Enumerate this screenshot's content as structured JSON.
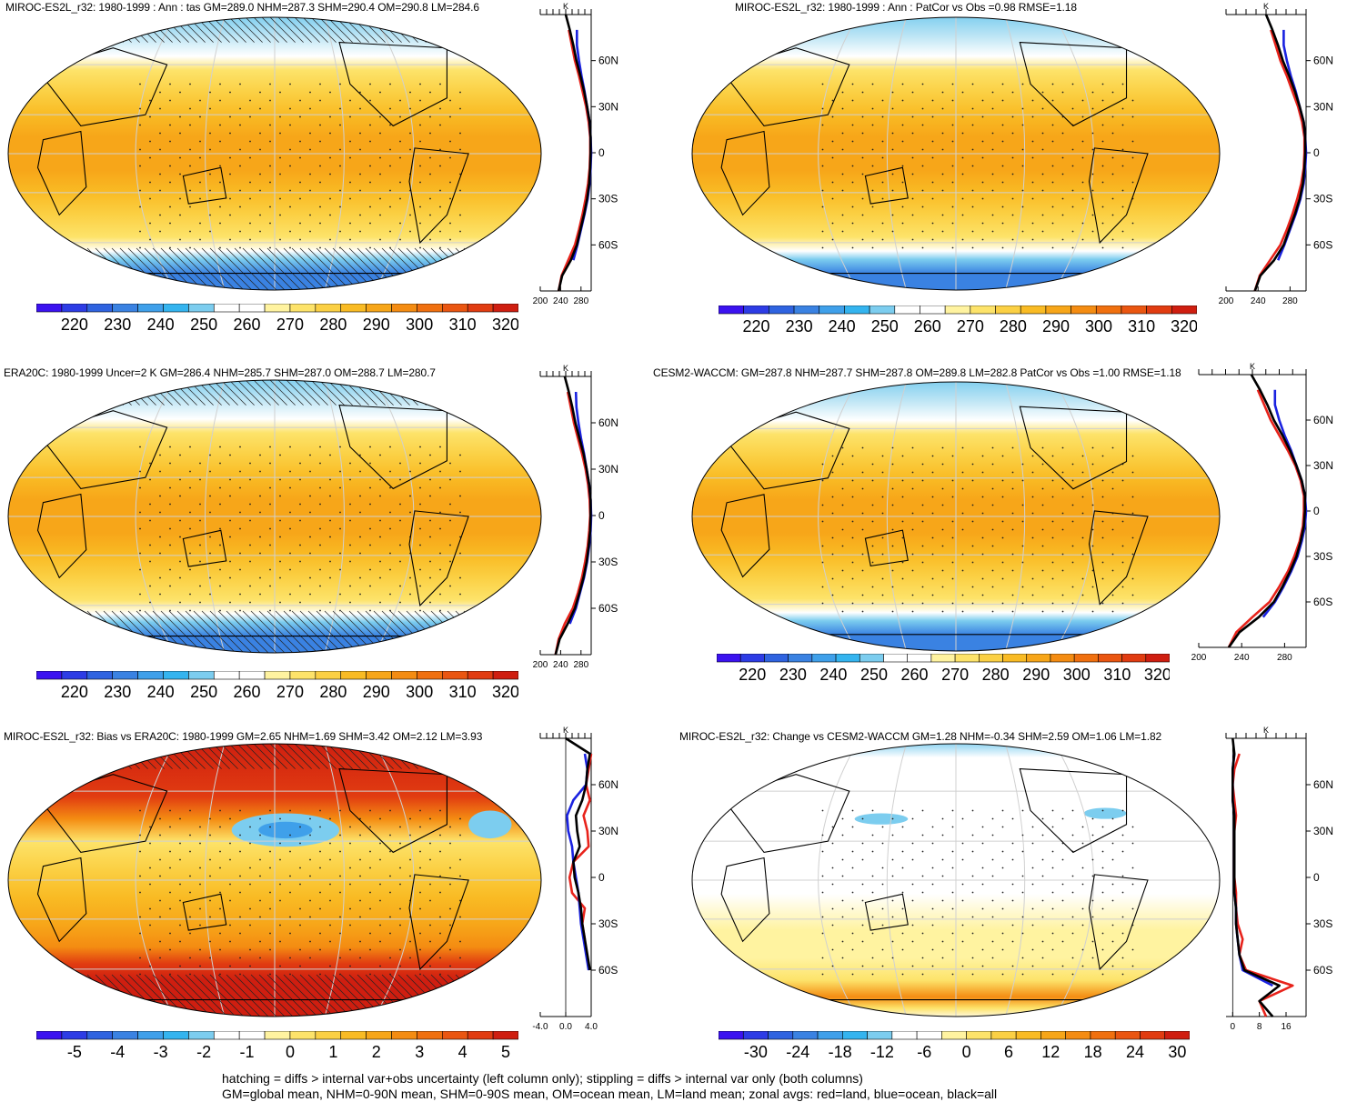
{
  "colors": {
    "land": "#e8231b",
    "ocean": "#1a22e0",
    "all": "#000000",
    "abs_scale": [
      "#3b12f0",
      "#2d3ce5",
      "#2f63e0",
      "#3a82e2",
      "#3fa0ea",
      "#34b4ef",
      "#7ccdef",
      "#ffffff",
      "#ffffff",
      "#fff3a0",
      "#fde36a",
      "#fbd044",
      "#f9bb24",
      "#f7a619",
      "#f48c12",
      "#f0700f",
      "#ea5611",
      "#e13c11",
      "#cf1e10"
    ],
    "diff_scale": [
      "#3b12f0",
      "#2d3ce5",
      "#2f63e0",
      "#3a82e2",
      "#3fa0ea",
      "#34b4ef",
      "#7ccdef",
      "#ffffff",
      "#ffffff",
      "#fff3a0",
      "#fde36a",
      "#fbd044",
      "#f9bb24",
      "#f7a619",
      "#f48c12",
      "#f0700f",
      "#ea5611",
      "#e13c11",
      "#cf1e10"
    ]
  },
  "panels": [
    {
      "id": "miroc",
      "title": "MIROC-ES2L_r32: 1980-1999 : Ann : tas GM=289.0 NHM=287.3 SHM=290.4 OM=290.8 LM=284.6",
      "map_style": "abs",
      "hatch": true,
      "colorbar_labels": [
        "220",
        "230",
        "240",
        "250",
        "260",
        "270",
        "280",
        "290",
        "300",
        "310",
        "320"
      ],
      "zonal": {
        "unit": "K",
        "lat_labels": [
          "60N",
          "30N",
          "0",
          "30S",
          "60S"
        ],
        "x_labels": [
          "200",
          "240",
          "280"
        ],
        "xlim": [
          200,
          300
        ]
      }
    },
    {
      "id": "miroc-patcor",
      "title": "MIROC-ES2L_r32: 1980-1999 : Ann : PatCor vs Obs =0.98 RMSE=1.18",
      "map_style": "abs",
      "hatch": false,
      "colorbar_labels": [
        "220",
        "230",
        "240",
        "250",
        "260",
        "270",
        "280",
        "290",
        "300",
        "310",
        "320"
      ],
      "zonal": {
        "unit": "K",
        "lat_labels": [
          "60N",
          "30N",
          "0",
          "30S",
          "60S"
        ],
        "x_labels": [
          "200",
          "240",
          "280"
        ],
        "xlim": [
          200,
          300
        ]
      }
    },
    {
      "id": "era20c",
      "title": "ERA20C: 1980-1999 Uncer=2 K GM=286.4 NHM=285.7 SHM=287.0 OM=288.7 LM=280.7",
      "map_style": "abs",
      "hatch": true,
      "colorbar_labels": [
        "220",
        "230",
        "240",
        "250",
        "260",
        "270",
        "280",
        "290",
        "300",
        "310",
        "320"
      ],
      "zonal": {
        "unit": "K",
        "lat_labels": [
          "60N",
          "30N",
          "0",
          "30S",
          "60S"
        ],
        "x_labels": [
          "200",
          "240",
          "280"
        ],
        "xlim": [
          200,
          300
        ]
      }
    },
    {
      "id": "cesm2",
      "title": "CESM2-WACCM: GM=287.8 NHM=287.7 SHM=287.8 OM=289.8 LM=282.8 PatCor vs Obs =1.00 RMSE=1.18",
      "map_style": "abs",
      "hatch": false,
      "colorbar_labels": [
        "220",
        "230",
        "240",
        "250",
        "260",
        "270",
        "280",
        "290",
        "300",
        "310",
        "320"
      ],
      "zonal": {
        "unit": "K",
        "lat_labels": [
          "60N",
          "30N",
          "0",
          "30S",
          "60S"
        ],
        "x_labels": [
          "200",
          "240",
          "280"
        ],
        "xlim": [
          200,
          300
        ]
      }
    },
    {
      "id": "bias",
      "title": "MIROC-ES2L_r32: Bias vs ERA20C: 1980-1999 GM=2.65 NHM=1.69 SHM=3.42 OM=2.12 LM=3.93",
      "map_style": "bias",
      "hatch": true,
      "colorbar_labels": [
        "-5",
        "-4",
        "-3",
        "-2",
        "-1",
        "0",
        "1",
        "2",
        "3",
        "4",
        "5"
      ],
      "zonal": {
        "unit": "K",
        "lat_labels": [
          "60N",
          "30N",
          "0",
          "30S",
          "60S"
        ],
        "x_labels": [
          "-4.0",
          "0.0",
          "4.0"
        ],
        "xlim": [
          -4,
          4
        ]
      }
    },
    {
      "id": "change",
      "title": "MIROC-ES2L_r32: Change vs CESM2-WACCM GM=1.28 NHM=-0.34 SHM=2.59 OM=1.06 LM=1.82",
      "map_style": "change",
      "hatch": false,
      "colorbar_labels": [
        "-30",
        "-24",
        "-18",
        "-12",
        "-6",
        "0",
        "6",
        "12",
        "18",
        "24",
        "30"
      ],
      "zonal": {
        "unit": "K",
        "lat_labels": [
          "60N",
          "30N",
          "0",
          "30S",
          "60S"
        ],
        "x_labels": [
          "0",
          "8",
          "16"
        ],
        "xlim": [
          -2,
          22
        ]
      }
    }
  ],
  "footer": {
    "line1": "hatching = diffs > internal var+obs uncertainty (left column only); stippling = diffs > internal var only (both columns)",
    "line2": "GM=global mean, NHM=0-90N mean, SHM=0-90S mean, OM=ocean mean, LM=land mean; zonal avgs: red=land, blue=ocean, black=all"
  },
  "chart_data": [
    {
      "type": "line",
      "panel": "miroc",
      "xlabel": "K",
      "xlim": [
        200,
        300
      ],
      "categories": [
        "90N",
        "80N",
        "70N",
        "60N",
        "50N",
        "40N",
        "30N",
        "20N",
        "10N",
        "0",
        "10S",
        "20S",
        "30S",
        "40S",
        "50S",
        "60S",
        "70S",
        "80S",
        "90S"
      ],
      "series": [
        {
          "name": "land",
          "values": [
            null,
            256,
            262,
            268,
            276,
            283,
            290,
            295,
            298,
            298,
            297,
            294,
            289,
            283,
            276,
            268,
            255,
            242,
            236
          ]
        },
        {
          "name": "ocean",
          "values": [
            null,
            272,
            272,
            276,
            281,
            287,
            292,
            297,
            299,
            300,
            299,
            297,
            293,
            287,
            280,
            273,
            265,
            null,
            null
          ]
        },
        {
          "name": "all",
          "values": [
            250,
            258,
            265,
            271,
            279,
            286,
            292,
            297,
            299,
            299,
            298,
            296,
            292,
            286,
            279,
            272,
            260,
            243,
            236
          ]
        }
      ]
    },
    {
      "type": "line",
      "panel": "miroc-patcor",
      "xlabel": "K",
      "xlim": [
        200,
        300
      ],
      "categories": [
        "90N",
        "80N",
        "70N",
        "60N",
        "50N",
        "40N",
        "30N",
        "20N",
        "10N",
        "0",
        "10S",
        "20S",
        "30S",
        "40S",
        "50S",
        "60S",
        "70S",
        "80S",
        "90S"
      ],
      "series": [
        {
          "name": "land",
          "values": [
            null,
            256,
            262,
            268,
            276,
            283,
            290,
            295,
            298,
            298,
            297,
            294,
            289,
            283,
            276,
            268,
            255,
            242,
            236
          ]
        },
        {
          "name": "ocean",
          "values": [
            null,
            272,
            272,
            276,
            281,
            287,
            292,
            297,
            299,
            300,
            299,
            297,
            293,
            287,
            280,
            273,
            265,
            null,
            null
          ]
        },
        {
          "name": "all",
          "values": [
            250,
            258,
            265,
            271,
            279,
            286,
            292,
            297,
            299,
            299,
            298,
            296,
            292,
            286,
            279,
            272,
            260,
            243,
            236
          ]
        }
      ]
    },
    {
      "type": "line",
      "panel": "era20c",
      "xlabel": "K",
      "xlim": [
        200,
        300
      ],
      "categories": [
        "90N",
        "80N",
        "70N",
        "60N",
        "50N",
        "40N",
        "30N",
        "20N",
        "10N",
        "0",
        "10S",
        "20S",
        "30S",
        "40S",
        "50S",
        "60S",
        "70S",
        "80S",
        "90S"
      ],
      "series": [
        {
          "name": "land",
          "values": [
            null,
            254,
            260,
            266,
            274,
            282,
            289,
            294,
            297,
            298,
            296,
            293,
            288,
            282,
            274,
            264,
            248,
            236,
            230
          ]
        },
        {
          "name": "ocean",
          "values": [
            null,
            270,
            271,
            275,
            280,
            286,
            291,
            296,
            299,
            300,
            299,
            296,
            292,
            286,
            278,
            270,
            258,
            null,
            null
          ]
        },
        {
          "name": "all",
          "values": [
            248,
            256,
            263,
            269,
            277,
            285,
            291,
            296,
            299,
            299,
            298,
            295,
            291,
            285,
            277,
            268,
            254,
            238,
            230
          ]
        }
      ]
    },
    {
      "type": "line",
      "panel": "cesm2",
      "xlabel": "K",
      "xlim": [
        200,
        300
      ],
      "categories": [
        "90N",
        "80N",
        "70N",
        "60N",
        "50N",
        "40N",
        "30N",
        "20N",
        "10N",
        "0",
        "10S",
        "20S",
        "30S",
        "40S",
        "50S",
        "60S",
        "70S",
        "80S",
        "90S"
      ],
      "series": [
        {
          "name": "land",
          "values": [
            null,
            255,
            261,
            267,
            275,
            283,
            290,
            295,
            298,
            298,
            297,
            294,
            289,
            283,
            275,
            266,
            250,
            235,
            228
          ]
        },
        {
          "name": "ocean",
          "values": [
            null,
            271,
            271,
            275,
            280,
            286,
            291,
            296,
            299,
            300,
            299,
            296,
            292,
            286,
            279,
            271,
            260,
            null,
            null
          ]
        },
        {
          "name": "all",
          "values": [
            249,
            257,
            264,
            270,
            278,
            285,
            291,
            296,
            299,
            299,
            298,
            295,
            291,
            285,
            278,
            270,
            256,
            238,
            228
          ]
        }
      ]
    },
    {
      "type": "line",
      "panel": "bias",
      "xlabel": "K",
      "xlim": [
        -4,
        4
      ],
      "categories": [
        "90N",
        "80N",
        "70N",
        "60N",
        "50N",
        "40N",
        "30N",
        "20N",
        "10N",
        "0",
        "10S",
        "20S",
        "30S",
        "40S",
        "50S",
        "60S",
        "70S",
        "80S",
        "90S"
      ],
      "series": [
        {
          "name": "land",
          "values": [
            null,
            4.0,
            3.6,
            3.2,
            3.8,
            2.8,
            3.4,
            3.6,
            1.2,
            0.6,
            1.0,
            3.0,
            2.6,
            3.0,
            null,
            null,
            null,
            null,
            null
          ]
        },
        {
          "name": "ocean",
          "values": [
            null,
            3.0,
            3.4,
            3.2,
            1.2,
            0.2,
            0.4,
            1.0,
            1.2,
            1.6,
            2.0,
            2.2,
            2.4,
            2.8,
            3.2,
            3.6,
            null,
            null,
            null
          ]
        },
        {
          "name": "all",
          "values": [
            0,
            3.8,
            3.4,
            3.2,
            2.6,
            1.6,
            1.8,
            2.2,
            1.2,
            1.4,
            2.0,
            2.4,
            2.6,
            3.0,
            3.4,
            3.8,
            null,
            null,
            null
          ]
        }
      ]
    },
    {
      "type": "line",
      "panel": "change",
      "xlabel": "K",
      "xlim": [
        -2,
        22
      ],
      "categories": [
        "90N",
        "80N",
        "70N",
        "60N",
        "50N",
        "40N",
        "30N",
        "20N",
        "10N",
        "0",
        "10S",
        "20S",
        "30S",
        "40S",
        "50S",
        "60S",
        "70S",
        "80S",
        "90S"
      ],
      "series": [
        {
          "name": "land",
          "values": [
            null,
            2.0,
            0.5,
            0.0,
            0.5,
            1.0,
            0.5,
            0.5,
            0.5,
            0.5,
            1.0,
            1.0,
            1.5,
            3.0,
            2.0,
            4.0,
            18.0,
            8.0,
            10.0
          ]
        },
        {
          "name": "ocean",
          "values": [
            null,
            0.5,
            0.0,
            0.0,
            0.0,
            0.5,
            0.5,
            0.5,
            0.5,
            0.5,
            0.5,
            1.0,
            1.0,
            1.5,
            2.0,
            3.0,
            12.0,
            null,
            null
          ]
        },
        {
          "name": "all",
          "values": [
            0,
            0.5,
            0.0,
            0.0,
            0.0,
            0.5,
            0.5,
            0.5,
            0.5,
            0.5,
            0.5,
            1.0,
            1.0,
            1.5,
            2.0,
            3.5,
            14.0,
            8.0,
            12.0
          ]
        }
      ]
    }
  ]
}
